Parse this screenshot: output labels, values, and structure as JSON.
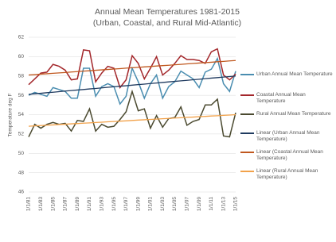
{
  "chart_data": {
    "type": "line",
    "title": "Annual Mean Temperatures 1981-2015",
    "subtitle": "(Urban, Coastal, and Rural Mid-Atlantic)",
    "y_label": "Temperature deg F",
    "categories": [
      "1/1/81",
      null,
      "1/1/83",
      null,
      "1/1/85",
      null,
      "1/1/87",
      null,
      "1/1/89",
      null,
      "1/1/91",
      null,
      "1/1/93",
      null,
      "1/1/95",
      null,
      "1/1/97",
      null,
      "1/1/99",
      null,
      "1/1/01",
      null,
      "1/1/03",
      null,
      "1/1/05",
      null,
      "1/1/07",
      null,
      "1/1/09",
      null,
      "1/1/11",
      null,
      "1/1/13",
      null,
      "1/1/15"
    ],
    "ylim": [
      46,
      62
    ],
    "yticks": [
      46,
      48,
      50,
      52,
      54,
      56,
      58,
      60,
      62
    ],
    "grid": true,
    "legend": "right",
    "series": [
      {
        "name": "Urban Annual Mean Temperature",
        "color": "#4a8db0",
        "values": [
          56.0,
          56.3,
          56.1,
          55.9,
          56.8,
          56.6,
          56.4,
          55.7,
          55.7,
          58.8,
          58.8,
          55.9,
          56.9,
          57.2,
          56.9,
          55.1,
          55.9,
          58.8,
          57.4,
          55.7,
          57.2,
          58.1,
          55.7,
          56.9,
          57.4,
          58.5,
          58.1,
          57.7,
          56.8,
          58.4,
          58.7,
          59.8,
          57.2,
          56.4,
          58.5
        ]
      },
      {
        "name": "Coastal Annual Mean Temperature",
        "color": "#a3272b",
        "values": [
          57.1,
          57.7,
          58.3,
          58.4,
          59.2,
          59.0,
          58.6,
          57.6,
          57.7,
          60.7,
          60.6,
          57.4,
          58.3,
          59.0,
          58.8,
          56.8,
          57.6,
          60.1,
          59.3,
          57.7,
          58.8,
          60.0,
          58.1,
          58.6,
          59.3,
          60.1,
          59.7,
          59.7,
          59.6,
          59.3,
          60.5,
          60.8,
          58.1,
          57.6,
          58.2
        ]
      },
      {
        "name": "Rural Annual Mean Temperature",
        "color": "#4b4a30",
        "values": [
          51.7,
          53.0,
          52.6,
          53.0,
          53.2,
          53.0,
          53.1,
          52.3,
          53.4,
          53.3,
          54.6,
          52.3,
          53.0,
          52.7,
          52.8,
          53.5,
          54.3,
          56.4,
          54.4,
          54.6,
          52.6,
          53.9,
          52.7,
          53.6,
          53.7,
          54.8,
          52.9,
          53.3,
          53.5,
          55.0,
          55.0,
          55.6,
          51.8,
          51.7,
          54.2
        ]
      },
      {
        "name": "Linear  (Urban Annual Mean Temperature)",
        "color": "#1f3a5f",
        "values": [
          56.1,
          56.16,
          56.21,
          56.27,
          56.32,
          56.38,
          56.44,
          56.49,
          56.55,
          56.6,
          56.66,
          56.71,
          56.77,
          56.83,
          56.88,
          56.94,
          56.99,
          57.05,
          57.11,
          57.16,
          57.22,
          57.27,
          57.33,
          57.39,
          57.44,
          57.5,
          57.55,
          57.61,
          57.66,
          57.72,
          57.78,
          57.83,
          57.89,
          57.94,
          58.0
        ]
      },
      {
        "name": "Linear  (Coastal Annual Mean Temperature)",
        "color": "#c0581f",
        "values": [
          58.1,
          58.14,
          58.19,
          58.23,
          58.28,
          58.32,
          58.36,
          58.41,
          58.45,
          58.5,
          58.54,
          58.59,
          58.63,
          58.67,
          58.72,
          58.76,
          58.81,
          58.85,
          58.89,
          58.94,
          58.98,
          59.03,
          59.07,
          59.11,
          59.16,
          59.2,
          59.25,
          59.29,
          59.34,
          59.38,
          59.42,
          59.47,
          59.51,
          59.56,
          59.6
        ]
      },
      {
        "name": "Linear  (Rural Annual Mean Temperature)",
        "color": "#f2a24a",
        "values": [
          52.8,
          52.84,
          52.87,
          52.91,
          52.94,
          52.98,
          53.01,
          53.05,
          53.08,
          53.12,
          53.15,
          53.19,
          53.22,
          53.26,
          53.29,
          53.33,
          53.36,
          53.4,
          53.44,
          53.47,
          53.51,
          53.54,
          53.58,
          53.61,
          53.65,
          53.68,
          53.72,
          53.75,
          53.79,
          53.82,
          53.86,
          53.89,
          53.93,
          53.96,
          54.0
        ]
      }
    ]
  }
}
